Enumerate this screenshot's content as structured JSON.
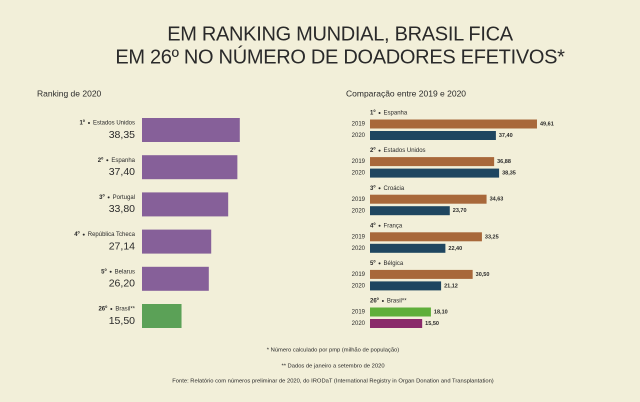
{
  "header": {
    "title": [
      "EM RANKING MUNDIAL, BRASIL FICA",
      "EM 26º NO NÚMERO DE DOADORES EFETIVOS*"
    ]
  },
  "chart_data": [
    {
      "type": "bar",
      "orientation": "horizontal",
      "title": "Ranking de 2020",
      "ranks": [
        "1º",
        "2º",
        "3º",
        "4º",
        "5º",
        "26º"
      ],
      "categories": [
        "Estados Unidos",
        "Espanha",
        "Portugal",
        "República Tcheca",
        "Belarus",
        "Brasil**"
      ],
      "values": [
        38.35,
        37.4,
        33.8,
        27.14,
        26.2,
        15.5
      ],
      "value_labels": [
        "38,35",
        "37,40",
        "33,80",
        "27,14",
        "26,20",
        "15,50"
      ],
      "colors": [
        "#7d5494",
        "#7d5494",
        "#7d5494",
        "#7d5494",
        "#7d5494",
        "#4e9a4c"
      ],
      "xlim": [
        0,
        40
      ]
    },
    {
      "type": "grouped-bar",
      "orientation": "horizontal",
      "title": "Comparação entre 2019 e 2020",
      "ranks": [
        "1º",
        "2º",
        "3º",
        "4º",
        "5º",
        "26º"
      ],
      "categories": [
        "Espanha",
        "Estados Unidos",
        "Croácia",
        "França",
        "Bélgica",
        "Brasil**"
      ],
      "series": [
        {
          "name": "2019",
          "values": [
            49.61,
            36.88,
            34.63,
            33.25,
            30.5,
            18.1
          ],
          "value_labels": [
            "49,61",
            "36,88",
            "34,63",
            "33,25",
            "30,50",
            "18,10"
          ],
          "colors": [
            "#a8683a",
            "#a8683a",
            "#a8683a",
            "#a8683a",
            "#a8683a",
            "#5fae3a"
          ]
        },
        {
          "name": "2020",
          "values": [
            37.4,
            38.35,
            23.7,
            22.4,
            21.12,
            15.5
          ],
          "value_labels": [
            "37,40",
            "38,35",
            "23,70",
            "22,40",
            "21,12",
            "15,50"
          ],
          "colors": [
            "#1f4660",
            "#1f4660",
            "#1f4660",
            "#1f4660",
            "#1f4660",
            "#8a2a6a"
          ]
        }
      ],
      "xlim": [
        0,
        50
      ]
    }
  ],
  "footer": {
    "notes": [
      "* Número calculado por pmp (milhão de população)",
      "** Dados de janeiro a setembro de 2020",
      "Fonte: Relatório com números preliminar de 2020, do IRODaT (International Registry in Organ Donation and Transplantation)"
    ]
  }
}
